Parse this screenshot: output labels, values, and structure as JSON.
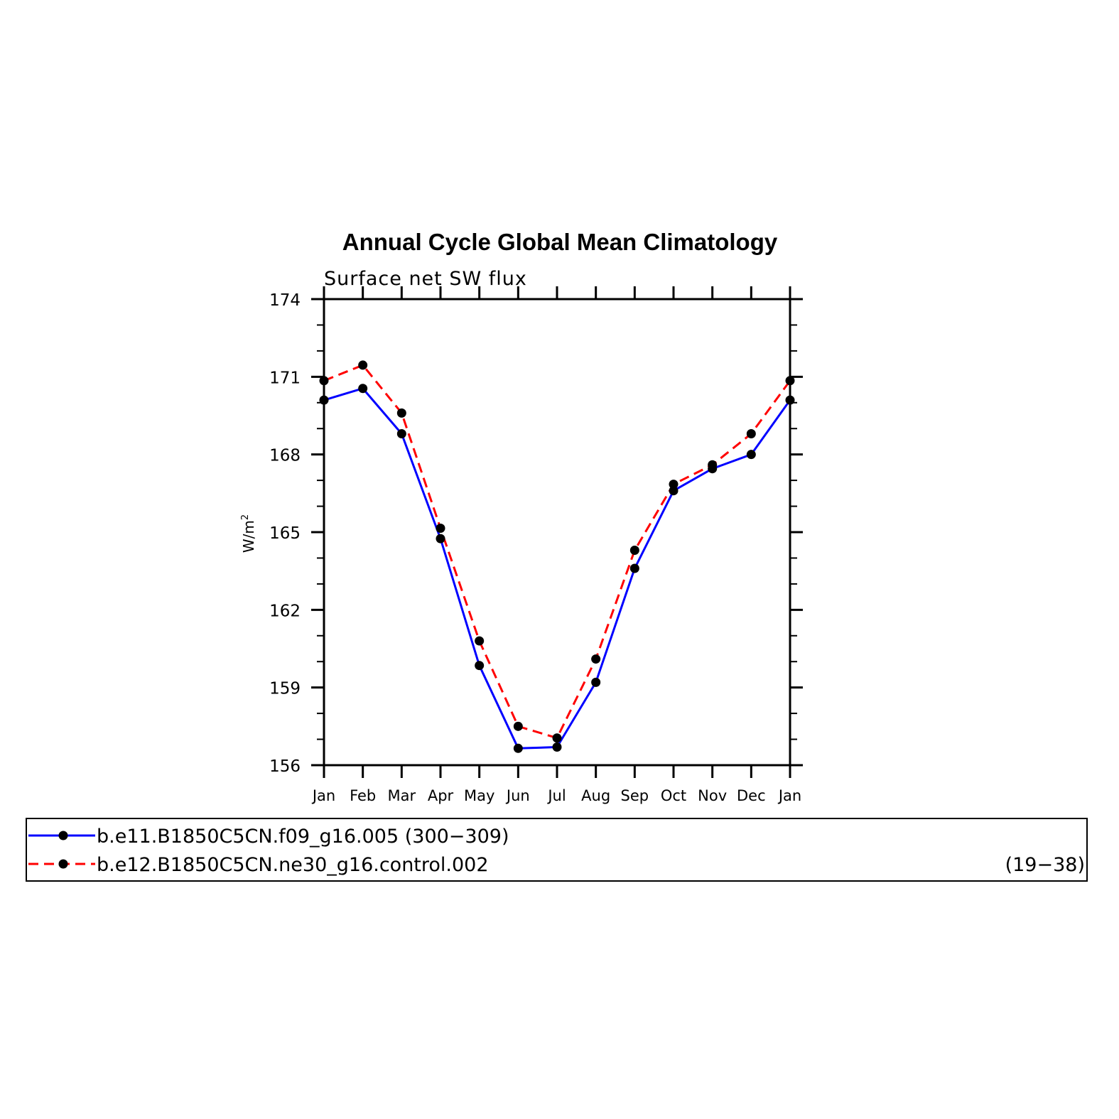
{
  "chart_data": {
    "type": "line",
    "title": "Annual Cycle Global Mean Climatology",
    "subtitle": "Surface net SW flux",
    "ylabel": "W/m",
    "ylabel_sup": "2",
    "xlabel": "",
    "categories": [
      "Jan",
      "Feb",
      "Mar",
      "Apr",
      "May",
      "Jun",
      "Jul",
      "Aug",
      "Sep",
      "Oct",
      "Nov",
      "Dec",
      "Jan"
    ],
    "ylim": [
      156,
      174
    ],
    "yticks": [
      "156",
      "159",
      "162",
      "165",
      "168",
      "171",
      "174"
    ],
    "grid": false,
    "legend_position": "bottom",
    "series": [
      {
        "name": "b.e11.B1850C5CN.f09_g16.005 (300−309)",
        "color": "#0000ff",
        "dash": "solid",
        "values": [
          170.1,
          170.55,
          168.8,
          164.75,
          159.85,
          156.65,
          156.7,
          159.2,
          163.6,
          166.6,
          167.45,
          168.0,
          170.1
        ]
      },
      {
        "name": "b.e12.B1850C5CN.ne30_g16.control.002",
        "name_suffix": "(19−38)",
        "color": "#ff0000",
        "dash": "dashed",
        "values": [
          170.85,
          171.45,
          169.6,
          165.15,
          160.8,
          157.5,
          157.05,
          160.1,
          164.3,
          166.85,
          167.6,
          168.8,
          170.85
        ]
      }
    ]
  }
}
